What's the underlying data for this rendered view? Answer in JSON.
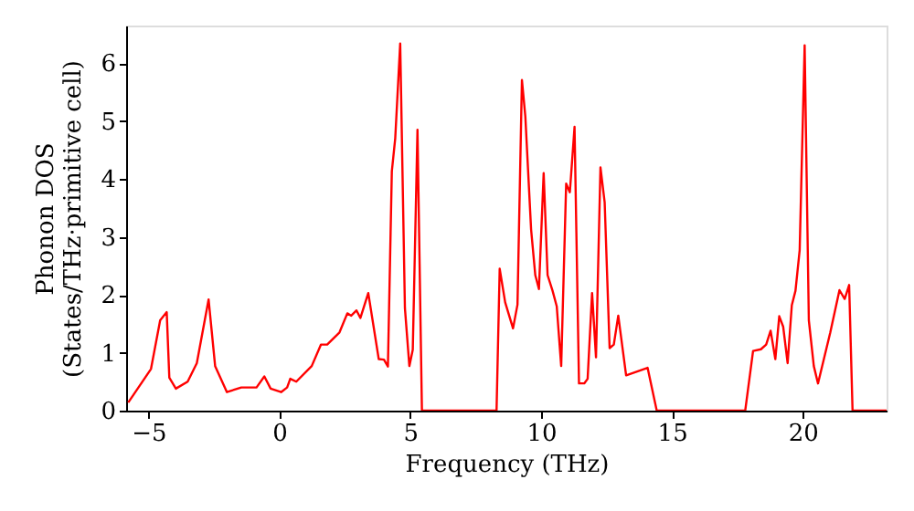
{
  "chart_data": {
    "type": "line",
    "xlabel": "Frequency (THz)",
    "ylabel": "Phonon DOS\n(States/THz·primitive cell)",
    "x": [
      -5.77,
      -4.9,
      -4.55,
      -4.3,
      -4.2,
      -3.95,
      -3.5,
      -3.15,
      -2.7,
      -2.45,
      -2.0,
      -1.45,
      -0.87,
      -0.57,
      -0.33,
      0.07,
      0.3,
      0.42,
      0.65,
      1.24,
      1.59,
      1.83,
      2.3,
      2.6,
      2.75,
      2.95,
      3.1,
      3.4,
      3.8,
      4.0,
      4.15,
      4.3,
      4.43,
      4.62,
      4.8,
      4.97,
      5.1,
      5.28,
      5.45,
      8.3,
      8.42,
      8.63,
      8.93,
      9.1,
      9.27,
      9.4,
      9.62,
      9.78,
      9.92,
      10.1,
      10.25,
      10.44,
      10.6,
      10.77,
      10.96,
      11.1,
      11.28,
      11.45,
      11.65,
      11.78,
      11.95,
      12.1,
      12.27,
      12.43,
      12.62,
      12.78,
      12.95,
      13.25,
      14.07,
      14.42,
      17.8,
      18.1,
      18.4,
      18.6,
      18.77,
      18.95,
      19.1,
      19.25,
      19.42,
      19.58,
      19.72,
      19.88,
      20.07,
      20.23,
      20.42,
      20.58,
      21.05,
      21.4,
      21.6,
      21.77,
      21.9,
      23.2
    ],
    "series": [
      {
        "color": "#ff0000",
        "values": [
          0.14,
          0.72,
          1.56,
          1.7,
          0.57,
          0.38,
          0.5,
          0.82,
          1.92,
          0.77,
          0.32,
          0.4,
          0.4,
          0.59,
          0.38,
          0.32,
          0.4,
          0.55,
          0.5,
          0.77,
          1.14,
          1.14,
          1.35,
          1.68,
          1.64,
          1.73,
          1.6,
          2.03,
          0.89,
          0.88,
          0.76,
          4.13,
          4.7,
          6.34,
          1.77,
          0.77,
          1.05,
          4.85,
          0,
          0,
          2.45,
          1.87,
          1.42,
          1.83,
          5.71,
          5.08,
          3.13,
          2.34,
          2.1,
          4.1,
          2.34,
          2.07,
          1.8,
          0.77,
          3.92,
          3.77,
          4.9,
          0.47,
          0.47,
          0.55,
          2.03,
          0.92,
          4.2,
          3.6,
          1.08,
          1.14,
          1.64,
          0.61,
          0.74,
          0,
          0,
          1.03,
          1.06,
          1.14,
          1.38,
          0.89,
          1.63,
          1.45,
          0.82,
          1.82,
          2.07,
          2.77,
          6.31,
          1.56,
          0.77,
          0.47,
          1.35,
          2.08,
          1.93,
          2.17,
          0,
          0
        ]
      }
    ],
    "xlim": [
      -5.85,
      23.2
    ],
    "xticks": [
      -5,
      0,
      5,
      10,
      15,
      20
    ],
    "ylim": [
      0,
      6.65
    ],
    "yticks": [
      0,
      1,
      2,
      3,
      4,
      5,
      6
    ],
    "grid": false,
    "line_style": "solid",
    "marker": "none"
  }
}
